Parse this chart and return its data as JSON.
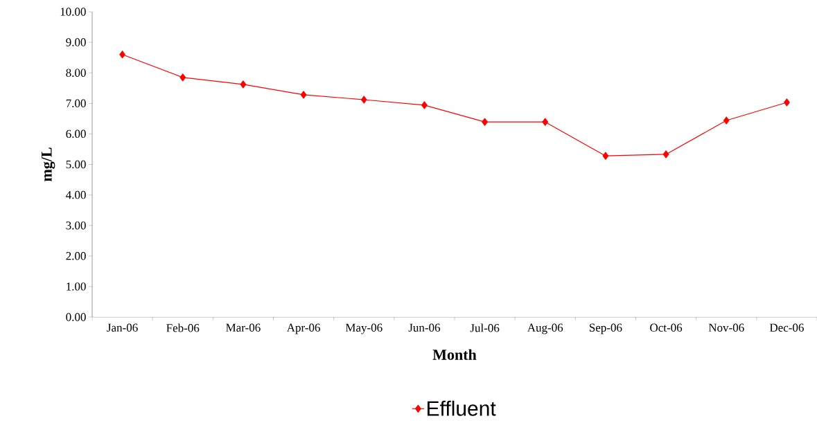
{
  "chart_data": {
    "type": "line",
    "xlabel": "Month",
    "ylabel": "mg/L",
    "categories": [
      "Jan-06",
      "Feb-06",
      "Mar-06",
      "Apr-06",
      "May-06",
      "Jun-06",
      "Jul-06",
      "Aug-06",
      "Sep-06",
      "Oct-06",
      "Nov-06",
      "Dec-06"
    ],
    "series": [
      {
        "name": "Effluent",
        "color": "#ff0000",
        "values": [
          8.6,
          7.85,
          7.62,
          7.28,
          7.12,
          6.94,
          6.39,
          6.39,
          5.28,
          5.33,
          6.44,
          7.03
        ]
      }
    ],
    "ylim": [
      0,
      10
    ],
    "yticks": [
      {
        "value": 0,
        "label": "0.00"
      },
      {
        "value": 1,
        "label": "1.00"
      },
      {
        "value": 2,
        "label": "2.00"
      },
      {
        "value": 3,
        "label": "3.00"
      },
      {
        "value": 4,
        "label": "4.00"
      },
      {
        "value": 5,
        "label": "5.00"
      },
      {
        "value": 6,
        "label": "6.00"
      },
      {
        "value": 7,
        "label": "7.00"
      },
      {
        "value": 8,
        "label": "8.00"
      },
      {
        "value": 9,
        "label": "9.00"
      },
      {
        "value": 10,
        "label": "10.00"
      }
    ],
    "marker": "diamond",
    "line_style": "solid",
    "legend": "bottom"
  }
}
